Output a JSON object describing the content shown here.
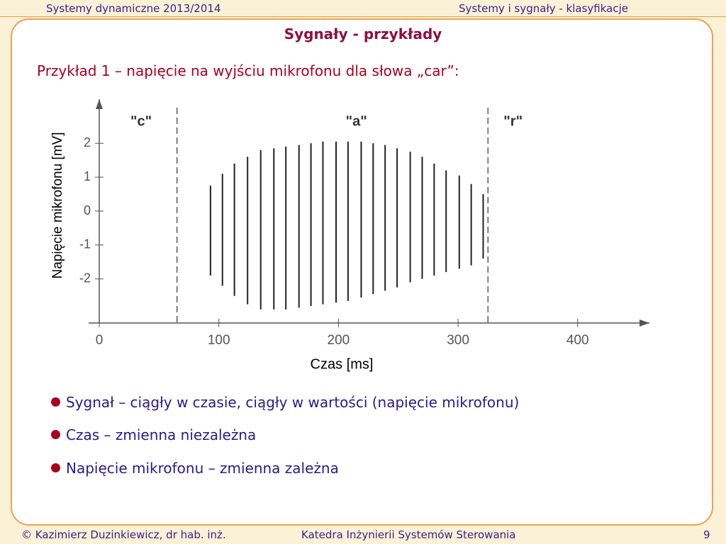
{
  "header": {
    "left": "Systemy dynamiczne 2013/2014",
    "right": "Systemy i sygnały - klasyfikacje"
  },
  "title": "Sygnały - przykłady",
  "subtitle": "Przykład 1 – napięcie na wyjściu mikrofonu dla słowa „car”:",
  "chart_data": {
    "type": "waveform",
    "ylabel": "Napięcie mikrofonu [mV]",
    "xlabel": "Czas [ms]",
    "xlim": [
      0,
      460
    ],
    "ylim": [
      -3.3,
      3.3
    ],
    "xticks": [
      0,
      100,
      200,
      300,
      400
    ],
    "yticks": [
      -2,
      -1,
      0,
      1,
      2
    ],
    "boundaries": [
      65,
      325
    ],
    "segments": [
      {
        "label": "\"c\"",
        "x": 35
      },
      {
        "label": "\"a\"",
        "x": 215
      },
      {
        "label": "\"r\"",
        "x": 346
      }
    ],
    "color": "#222222",
    "x": [
      93,
      103,
      113,
      124,
      135,
      146,
      156,
      167,
      177,
      187,
      198,
      208,
      219,
      229,
      239,
      249,
      260,
      270,
      280,
      290,
      301,
      311,
      321
    ],
    "max": [
      0.75,
      1.1,
      1.4,
      1.6,
      1.8,
      1.85,
      1.9,
      1.95,
      2.0,
      2.05,
      2.05,
      2.05,
      2.05,
      2.0,
      1.95,
      1.85,
      1.75,
      1.6,
      1.4,
      1.2,
      1.05,
      0.8,
      0.5
    ],
    "min": [
      -1.9,
      -2.2,
      -2.5,
      -2.75,
      -2.9,
      -2.9,
      -2.9,
      -2.85,
      -2.8,
      -2.75,
      -2.7,
      -2.65,
      -2.55,
      -2.45,
      -2.35,
      -2.25,
      -2.1,
      -2.0,
      -1.9,
      -1.8,
      -1.7,
      -1.6,
      -1.4
    ]
  },
  "bullets": [
    "Sygnał – ciągły w czasie, ciągły w wartości (napięcie mikrofonu)",
    "Czas – zmienna niezależna",
    "Napięcie mikrofonu – zmienna zależna"
  ],
  "footer": {
    "author": "© Kazimierz Duzinkiewicz, dr hab. inż.",
    "dept": "Katedra Inżynierii Systemów Sterowania",
    "page": "9"
  }
}
